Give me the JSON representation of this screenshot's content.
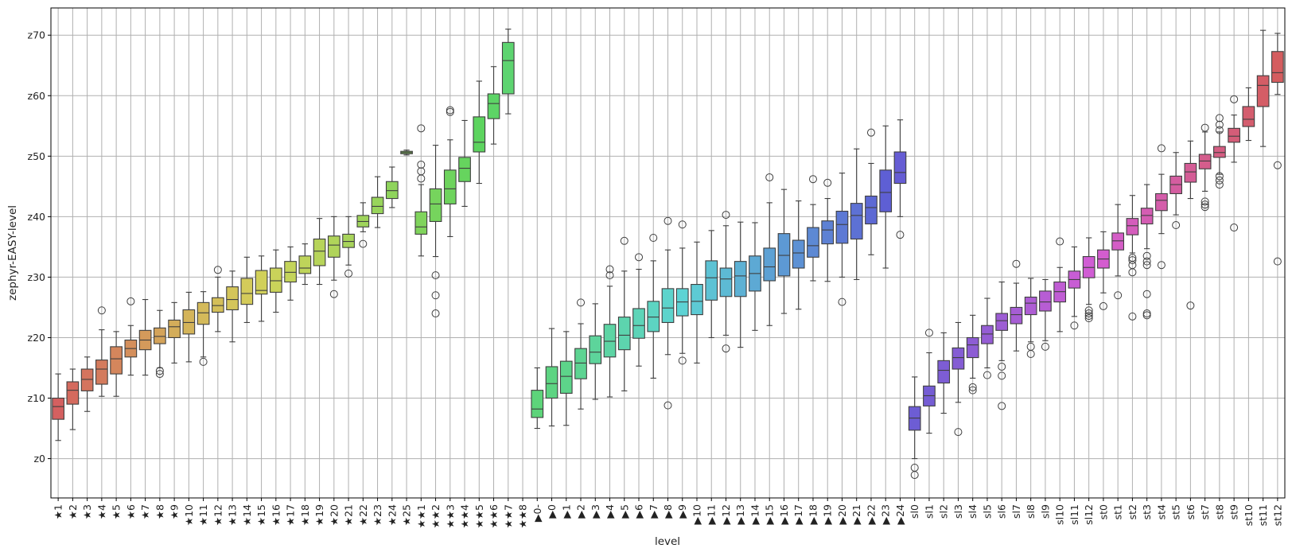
{
  "chart_data": {
    "type": "box",
    "xlabel": "level",
    "ylabel": "zephyr-EASY-level",
    "grid": true,
    "ylim": [
      -6.5,
      74.5
    ],
    "y_ticks": [
      {
        "value": 0,
        "label": "z0"
      },
      {
        "value": 10,
        "label": "z10"
      },
      {
        "value": 20,
        "label": "z20"
      },
      {
        "value": 30,
        "label": "z30"
      },
      {
        "value": 40,
        "label": "z40"
      },
      {
        "value": 50,
        "label": "z50"
      },
      {
        "value": 60,
        "label": "z60"
      },
      {
        "value": 70,
        "label": "z70"
      }
    ],
    "categories": [
      {
        "label": "★1",
        "color": "#d46060",
        "q1": 6.5,
        "med": 8.6,
        "q3": 10.0,
        "wlo": 3.0,
        "whi": 14.0,
        "outliers": []
      },
      {
        "label": "★2",
        "color": "#d46a5e",
        "q1": 9.0,
        "med": 11.3,
        "q3": 12.7,
        "wlo": 4.8,
        "whi": 14.8,
        "outliers": []
      },
      {
        "label": "★3",
        "color": "#d4745e",
        "q1": 11.2,
        "med": 13.1,
        "q3": 14.8,
        "wlo": 7.8,
        "whi": 16.8,
        "outliers": []
      },
      {
        "label": "★4",
        "color": "#d47b5d",
        "q1": 12.3,
        "med": 14.8,
        "q3": 16.3,
        "wlo": 10.3,
        "whi": 21.3,
        "outliers": [
          24.5
        ]
      },
      {
        "label": "★5",
        "color": "#d4865c",
        "q1": 14.0,
        "med": 16.5,
        "q3": 18.5,
        "wlo": 10.3,
        "whi": 21.0,
        "outliers": []
      },
      {
        "label": "★6",
        "color": "#d48f5c",
        "q1": 16.8,
        "med": 18.2,
        "q3": 19.6,
        "wlo": 13.8,
        "whi": 22.0,
        "outliers": [
          26.0
        ]
      },
      {
        "label": "★7",
        "color": "#d49a5b",
        "q1": 18.0,
        "med": 19.6,
        "q3": 21.2,
        "wlo": 13.8,
        "whi": 26.3,
        "outliers": []
      },
      {
        "label": "★8",
        "color": "#d4a35a",
        "q1": 19.0,
        "med": 20.2,
        "q3": 21.6,
        "wlo": 15.0,
        "whi": 24.5,
        "outliers": [
          14.5,
          14.0
        ]
      },
      {
        "label": "★9",
        "color": "#d4ad5a",
        "q1": 20.0,
        "med": 21.8,
        "q3": 22.9,
        "wlo": 15.8,
        "whi": 25.8,
        "outliers": []
      },
      {
        "label": "★10",
        "color": "#d4b45a",
        "q1": 20.6,
        "med": 22.5,
        "q3": 24.6,
        "wlo": 16.0,
        "whi": 27.5,
        "outliers": []
      },
      {
        "label": "★11",
        "color": "#d4ba5a",
        "q1": 22.2,
        "med": 24.1,
        "q3": 25.8,
        "wlo": 16.8,
        "whi": 27.6,
        "outliers": [
          16.0
        ]
      },
      {
        "label": "★12",
        "color": "#d4bf59",
        "q1": 24.2,
        "med": 25.3,
        "q3": 26.6,
        "wlo": 21.0,
        "whi": 30.0,
        "outliers": [
          31.2
        ]
      },
      {
        "label": "★13",
        "color": "#d4c55a",
        "q1": 24.6,
        "med": 26.3,
        "q3": 28.4,
        "wlo": 19.3,
        "whi": 31.0,
        "outliers": []
      },
      {
        "label": "★14",
        "color": "#d4cb5a",
        "q1": 25.5,
        "med": 27.3,
        "q3": 29.8,
        "wlo": 22.5,
        "whi": 33.3,
        "outliers": []
      },
      {
        "label": "★15",
        "color": "#d1d05a",
        "q1": 27.2,
        "med": 27.8,
        "q3": 31.1,
        "wlo": 22.7,
        "whi": 33.5,
        "outliers": []
      },
      {
        "label": "★16",
        "color": "#cad35a",
        "q1": 27.5,
        "med": 29.4,
        "q3": 31.5,
        "wlo": 24.2,
        "whi": 34.5,
        "outliers": []
      },
      {
        "label": "★17",
        "color": "#c4d45a",
        "q1": 29.2,
        "med": 30.8,
        "q3": 32.6,
        "wlo": 26.2,
        "whi": 35.0,
        "outliers": []
      },
      {
        "label": "★18",
        "color": "#bed45a",
        "q1": 30.6,
        "med": 31.5,
        "q3": 33.5,
        "wlo": 28.8,
        "whi": 35.5,
        "outliers": []
      },
      {
        "label": "★19",
        "color": "#b7d45a",
        "q1": 31.9,
        "med": 34.3,
        "q3": 36.3,
        "wlo": 28.8,
        "whi": 39.7,
        "outliers": []
      },
      {
        "label": "★20",
        "color": "#b0d45a",
        "q1": 33.3,
        "med": 35.3,
        "q3": 36.8,
        "wlo": 29.5,
        "whi": 40.0,
        "outliers": [
          27.2
        ]
      },
      {
        "label": "★21",
        "color": "#a8d45b",
        "q1": 34.9,
        "med": 35.9,
        "q3": 37.1,
        "wlo": 32.0,
        "whi": 40.0,
        "outliers": [
          30.6
        ]
      },
      {
        "label": "★22",
        "color": "#9fd45b",
        "q1": 38.3,
        "med": 39.2,
        "q3": 40.2,
        "wlo": 37.5,
        "whi": 42.3,
        "outliers": [
          35.5
        ]
      },
      {
        "label": "★23",
        "color": "#98d45b",
        "q1": 40.5,
        "med": 41.7,
        "q3": 43.2,
        "wlo": 38.2,
        "whi": 46.6,
        "outliers": []
      },
      {
        "label": "★24",
        "color": "#8fd45c",
        "q1": 43.0,
        "med": 44.3,
        "q3": 45.8,
        "wlo": 41.5,
        "whi": 48.2,
        "outliers": []
      },
      {
        "label": "★25",
        "color": "#88d45c",
        "q1": 50.4,
        "med": 50.6,
        "q3": 50.8,
        "wlo": 50.2,
        "whi": 51.0,
        "outliers": []
      },
      {
        "label": "★★1",
        "color": "#80d45c",
        "q1": 37.1,
        "med": 38.3,
        "q3": 40.8,
        "wlo": 33.5,
        "whi": 45.3,
        "outliers": [
          54.6,
          48.6,
          47.5,
          46.3
        ]
      },
      {
        "label": "★★2",
        "color": "#76d45d",
        "q1": 39.2,
        "med": 42.1,
        "q3": 44.6,
        "wlo": 33.4,
        "whi": 51.8,
        "outliers": [
          30.3,
          27.0,
          24.0
        ]
      },
      {
        "label": "★★3",
        "color": "#6ed45d",
        "q1": 42.1,
        "med": 44.6,
        "q3": 47.7,
        "wlo": 36.7,
        "whi": 52.7,
        "outliers": [
          57.6,
          57.3
        ]
      },
      {
        "label": "★★4",
        "color": "#66d45e",
        "q1": 45.8,
        "med": 48.0,
        "q3": 49.8,
        "wlo": 41.7,
        "whi": 55.9,
        "outliers": []
      },
      {
        "label": "★★5",
        "color": "#5dd45f",
        "q1": 50.7,
        "med": 52.3,
        "q3": 56.5,
        "wlo": 45.5,
        "whi": 62.4,
        "outliers": []
      },
      {
        "label": "★★6",
        "color": "#5dd466",
        "q1": 56.2,
        "med": 58.7,
        "q3": 60.3,
        "wlo": 52.0,
        "whi": 64.8,
        "outliers": []
      },
      {
        "label": "★★7",
        "color": "#5dd470",
        "q1": 60.3,
        "med": 65.8,
        "q3": 68.8,
        "wlo": 57.0,
        "whi": 71.0,
        "outliers": []
      },
      {
        "label": "★★8",
        "color": "",
        "empty": true
      },
      {
        "label": "▶0-",
        "color": "#5dd47a",
        "q1": 6.8,
        "med": 8.2,
        "q3": 11.3,
        "wlo": 5.0,
        "whi": 15.0,
        "outliers": []
      },
      {
        "label": "▶0",
        "color": "#5dd482",
        "q1": 10.0,
        "med": 12.4,
        "q3": 15.2,
        "wlo": 5.4,
        "whi": 21.5,
        "outliers": []
      },
      {
        "label": "▶1",
        "color": "#5dd48a",
        "q1": 10.8,
        "med": 13.6,
        "q3": 16.1,
        "wlo": 5.5,
        "whi": 21.0,
        "outliers": []
      },
      {
        "label": "▶2",
        "color": "#5dd492",
        "q1": 13.2,
        "med": 15.8,
        "q3": 18.2,
        "wlo": 8.2,
        "whi": 22.3,
        "outliers": [
          25.8
        ]
      },
      {
        "label": "▶3",
        "color": "#5dd49b",
        "q1": 15.7,
        "med": 17.6,
        "q3": 20.3,
        "wlo": 9.8,
        "whi": 25.6,
        "outliers": []
      },
      {
        "label": "▶4",
        "color": "#5dd4a4",
        "q1": 16.8,
        "med": 19.4,
        "q3": 22.2,
        "wlo": 10.2,
        "whi": 28.5,
        "outliers": [
          31.3,
          30.3
        ]
      },
      {
        "label": "▶5",
        "color": "#5dd4ae",
        "q1": 18.0,
        "med": 20.4,
        "q3": 23.4,
        "wlo": 11.2,
        "whi": 31.0,
        "outliers": [
          36.0
        ]
      },
      {
        "label": "▶6",
        "color": "#5dd4b8",
        "q1": 19.9,
        "med": 22.0,
        "q3": 24.8,
        "wlo": 15.3,
        "whi": 31.3,
        "outliers": [
          33.3
        ]
      },
      {
        "label": "▶7",
        "color": "#5dd4c2",
        "q1": 21.0,
        "med": 23.4,
        "q3": 26.0,
        "wlo": 13.3,
        "whi": 32.7,
        "outliers": [
          36.5
        ]
      },
      {
        "label": "▶8",
        "color": "#5dd4cc",
        "q1": 22.5,
        "med": 24.9,
        "q3": 28.1,
        "wlo": 17.2,
        "whi": 34.5,
        "outliers": [
          39.3,
          8.8
        ]
      },
      {
        "label": "▶9",
        "color": "#5dd3d4",
        "q1": 23.6,
        "med": 25.9,
        "q3": 28.1,
        "wlo": 17.4,
        "whi": 34.8,
        "outliers": [
          38.7,
          16.2
        ]
      },
      {
        "label": "▶10",
        "color": "#5dcad4",
        "q1": 23.8,
        "med": 26.0,
        "q3": 28.8,
        "wlo": 15.8,
        "whi": 35.8,
        "outliers": []
      },
      {
        "label": "▶11",
        "color": "#5dc2d4",
        "q1": 26.2,
        "med": 29.9,
        "q3": 32.7,
        "wlo": 20.0,
        "whi": 37.7,
        "outliers": []
      },
      {
        "label": "▶12",
        "color": "#5dbad4",
        "q1": 26.8,
        "med": 29.7,
        "q3": 31.5,
        "wlo": 20.4,
        "whi": 38.5,
        "outliers": [
          40.3,
          18.2
        ]
      },
      {
        "label": "▶13",
        "color": "#5db1d4",
        "q1": 26.8,
        "med": 30.2,
        "q3": 32.6,
        "wlo": 18.4,
        "whi": 39.1,
        "outliers": []
      },
      {
        "label": "▶14",
        "color": "#5da9d4",
        "q1": 27.7,
        "med": 30.6,
        "q3": 33.5,
        "wlo": 21.2,
        "whi": 39.0,
        "outliers": []
      },
      {
        "label": "▶15",
        "color": "#5da1d4",
        "q1": 29.4,
        "med": 31.7,
        "q3": 34.8,
        "wlo": 22.0,
        "whi": 42.3,
        "outliers": [
          46.5
        ]
      },
      {
        "label": "▶16",
        "color": "#5d99d4",
        "q1": 30.2,
        "med": 33.6,
        "q3": 37.2,
        "wlo": 24.0,
        "whi": 44.5,
        "outliers": []
      },
      {
        "label": "▶17",
        "color": "#5d91d4",
        "q1": 31.5,
        "med": 34.0,
        "q3": 36.1,
        "wlo": 24.7,
        "whi": 42.6,
        "outliers": []
      },
      {
        "label": "▶18",
        "color": "#5d89d4",
        "q1": 33.3,
        "med": 35.2,
        "q3": 38.2,
        "wlo": 29.4,
        "whi": 42.0,
        "outliers": [
          46.2
        ]
      },
      {
        "label": "▶19",
        "color": "#5d81d4",
        "q1": 35.5,
        "med": 37.8,
        "q3": 39.3,
        "wlo": 29.3,
        "whi": 43.0,
        "outliers": [
          45.6
        ]
      },
      {
        "label": "▶20",
        "color": "#5d79d4",
        "q1": 35.6,
        "med": 38.7,
        "q3": 40.9,
        "wlo": 30.0,
        "whi": 47.2,
        "outliers": [
          25.9
        ]
      },
      {
        "label": "▶21",
        "color": "#5d71d4",
        "q1": 36.3,
        "med": 40.2,
        "q3": 42.2,
        "wlo": 29.6,
        "whi": 51.2,
        "outliers": []
      },
      {
        "label": "▶22",
        "color": "#5d69d4",
        "q1": 38.8,
        "med": 41.5,
        "q3": 43.4,
        "wlo": 33.7,
        "whi": 48.8,
        "outliers": [
          53.9
        ]
      },
      {
        "label": "▶23",
        "color": "#5e5fd4",
        "q1": 40.8,
        "med": 44.0,
        "q3": 47.7,
        "wlo": 31.5,
        "whi": 55.0,
        "outliers": []
      },
      {
        "label": "▶24",
        "color": "#665dd4",
        "q1": 45.5,
        "med": 47.3,
        "q3": 50.7,
        "wlo": 40.0,
        "whi": 56.0,
        "outliers": [
          37.0
        ]
      },
      {
        "label": "sl0",
        "color": "#6d5dd4",
        "q1": 4.7,
        "med": 6.7,
        "q3": 8.6,
        "wlo": 0.0,
        "whi": 13.5,
        "outliers": [
          -1.5,
          -2.7
        ]
      },
      {
        "label": "sl1",
        "color": "#755dd4",
        "q1": 8.7,
        "med": 10.4,
        "q3": 12.0,
        "wlo": 4.2,
        "whi": 17.5,
        "outliers": [
          20.8
        ]
      },
      {
        "label": "sl2",
        "color": "#7d5dd4",
        "q1": 12.5,
        "med": 14.6,
        "q3": 16.2,
        "wlo": 7.5,
        "whi": 20.8,
        "outliers": []
      },
      {
        "label": "sl3",
        "color": "#855dd4",
        "q1": 14.8,
        "med": 16.7,
        "q3": 18.3,
        "wlo": 9.3,
        "whi": 22.5,
        "outliers": [
          4.4
        ]
      },
      {
        "label": "sl4",
        "color": "#8d5dd4",
        "q1": 16.7,
        "med": 18.8,
        "q3": 20.0,
        "wlo": 13.3,
        "whi": 23.7,
        "outliers": [
          11.8,
          11.3
        ]
      },
      {
        "label": "sl5",
        "color": "#955dd4",
        "q1": 19.0,
        "med": 20.6,
        "q3": 22.0,
        "wlo": 15.0,
        "whi": 26.5,
        "outliers": [
          13.8
        ]
      },
      {
        "label": "sl6",
        "color": "#9d5dd4",
        "q1": 21.2,
        "med": 22.8,
        "q3": 24.0,
        "wlo": 16.2,
        "whi": 29.2,
        "outliers": [
          15.2,
          13.7,
          8.7
        ]
      },
      {
        "label": "sl7",
        "color": "#a65dd4",
        "q1": 22.3,
        "med": 23.8,
        "q3": 25.0,
        "wlo": 17.8,
        "whi": 29.0,
        "outliers": [
          32.2
        ]
      },
      {
        "label": "sl8",
        "color": "#ae5dd4",
        "q1": 23.8,
        "med": 25.7,
        "q3": 26.7,
        "wlo": 19.3,
        "whi": 29.8,
        "outliers": [
          18.5,
          17.3
        ]
      },
      {
        "label": "sl9",
        "color": "#b75dd4",
        "q1": 24.4,
        "med": 25.9,
        "q3": 27.7,
        "wlo": 19.5,
        "whi": 29.6,
        "outliers": [
          18.5
        ]
      },
      {
        "label": "sl10",
        "color": "#c05dd4",
        "q1": 25.9,
        "med": 27.6,
        "q3": 29.2,
        "wlo": 21.0,
        "whi": 31.6,
        "outliers": [
          35.9
        ]
      },
      {
        "label": "sl11",
        "color": "#c85dd4",
        "q1": 28.2,
        "med": 29.6,
        "q3": 31.0,
        "wlo": 23.5,
        "whi": 35.0,
        "outliers": [
          22.0
        ]
      },
      {
        "label": "sl12",
        "color": "#d05dd4",
        "q1": 29.9,
        "med": 31.6,
        "q3": 33.4,
        "wlo": 25.5,
        "whi": 36.5,
        "outliers": [
          24.5,
          24.0,
          23.6,
          23.2
        ]
      },
      {
        "label": "st0",
        "color": "#d45dcf",
        "q1": 31.5,
        "med": 33.0,
        "q3": 34.5,
        "wlo": 27.4,
        "whi": 37.5,
        "outliers": [
          25.2
        ]
      },
      {
        "label": "st1",
        "color": "#d45dc6",
        "q1": 34.5,
        "med": 36.0,
        "q3": 37.3,
        "wlo": 30.2,
        "whi": 42.0,
        "outliers": [
          27.0
        ]
      },
      {
        "label": "st2",
        "color": "#d45dbc",
        "q1": 37.0,
        "med": 38.5,
        "q3": 39.7,
        "wlo": 34.0,
        "whi": 43.5,
        "outliers": [
          33.2,
          32.8,
          32.0,
          30.8,
          23.5
        ]
      },
      {
        "label": "st3",
        "color": "#d45db3",
        "q1": 38.8,
        "med": 40.2,
        "q3": 41.4,
        "wlo": 34.7,
        "whi": 45.3,
        "outliers": [
          33.5,
          32.6,
          32.0,
          27.2,
          24.0,
          23.7
        ]
      },
      {
        "label": "st4",
        "color": "#d45daa",
        "q1": 41.0,
        "med": 42.7,
        "q3": 43.8,
        "wlo": 37.2,
        "whi": 47.0,
        "outliers": [
          51.3,
          32.0
        ]
      },
      {
        "label": "st5",
        "color": "#d45da0",
        "q1": 43.8,
        "med": 45.3,
        "q3": 46.7,
        "wlo": 40.3,
        "whi": 50.6,
        "outliers": [
          38.6
        ]
      },
      {
        "label": "st6",
        "color": "#d45d96",
        "q1": 45.7,
        "med": 47.4,
        "q3": 48.8,
        "wlo": 43.0,
        "whi": 52.5,
        "outliers": [
          25.3
        ]
      },
      {
        "label": "st7",
        "color": "#d45d8c",
        "q1": 47.9,
        "med": 49.2,
        "q3": 50.3,
        "wlo": 44.2,
        "whi": 54.0,
        "outliers": [
          54.7,
          42.5,
          42.0,
          41.6
        ]
      },
      {
        "label": "st8",
        "color": "#d45d82",
        "q1": 49.8,
        "med": 50.6,
        "q3": 51.6,
        "wlo": 47.0,
        "whi": 54.0,
        "outliers": [
          56.3,
          55.2,
          54.3,
          46.7,
          46.0,
          45.3
        ]
      },
      {
        "label": "st9",
        "color": "#d45d78",
        "q1": 52.3,
        "med": 53.3,
        "q3": 54.6,
        "wlo": 49.0,
        "whi": 56.8,
        "outliers": [
          59.4,
          38.2
        ]
      },
      {
        "label": "st10",
        "color": "#d45d6e",
        "q1": 54.9,
        "med": 56.1,
        "q3": 58.2,
        "wlo": 52.6,
        "whi": 61.3,
        "outliers": []
      },
      {
        "label": "st11",
        "color": "#d45d66",
        "q1": 58.2,
        "med": 61.7,
        "q3": 63.3,
        "wlo": 51.6,
        "whi": 70.8,
        "outliers": []
      },
      {
        "label": "st12",
        "color": "#d45d5f",
        "q1": 62.2,
        "med": 63.8,
        "q3": 67.3,
        "wlo": 60.2,
        "whi": 70.3,
        "outliers": [
          48.5,
          32.6
        ]
      }
    ]
  }
}
